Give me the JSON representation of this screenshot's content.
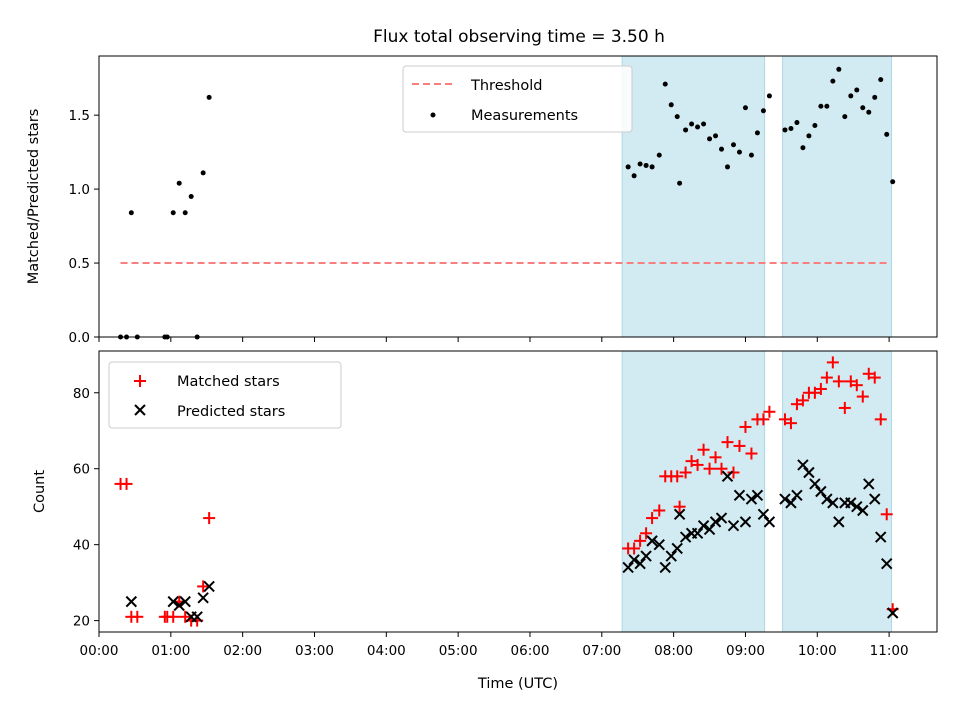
{
  "title": "Flux total observing time = 3.50 h",
  "colors": {
    "threshold": "#f77f7f",
    "measurement": "#000000",
    "matched": "#ff0000",
    "predicted": "#000000",
    "span": "#add8e6"
  },
  "chart_data": [
    {
      "type": "scatter",
      "ylabel": "Matched/Predicted stars",
      "xlabel": "",
      "xlim": [
        "00:00",
        "11:40"
      ],
      "ylim": [
        0,
        1.9
      ],
      "y_ticks": [
        "0.0",
        "0.5",
        "1.0",
        "1.5"
      ],
      "grid": false,
      "legend_position": "top-center",
      "shaded_spans": [
        [
          "07:17",
          "09:16"
        ],
        [
          "09:31",
          "11:02"
        ]
      ],
      "threshold": {
        "name": "Threshold",
        "value": 0.5,
        "x_range": [
          "00:18",
          "11:00"
        ]
      },
      "series": [
        {
          "name": "Measurements",
          "points": [
            [
              "00:18",
              0.0
            ],
            [
              "00:23",
              0.0
            ],
            [
              "00:27",
              0.84
            ],
            [
              "00:32",
              0.0
            ],
            [
              "00:55",
              0.0
            ],
            [
              "00:57",
              0.0
            ],
            [
              "01:02",
              0.84
            ],
            [
              "01:07",
              1.04
            ],
            [
              "01:12",
              0.84
            ],
            [
              "01:17",
              0.95
            ],
            [
              "01:22",
              0.0
            ],
            [
              "01:27",
              1.11
            ],
            [
              "01:32",
              1.62
            ],
            [
              "07:22",
              1.15
            ],
            [
              "07:27",
              1.09
            ],
            [
              "07:32",
              1.17
            ],
            [
              "07:37",
              1.16
            ],
            [
              "07:42",
              1.15
            ],
            [
              "07:48",
              1.23
            ],
            [
              "07:53",
              1.71
            ],
            [
              "07:58",
              1.57
            ],
            [
              "08:03",
              1.49
            ],
            [
              "08:05",
              1.04
            ],
            [
              "08:10",
              1.4
            ],
            [
              "08:15",
              1.44
            ],
            [
              "08:20",
              1.42
            ],
            [
              "08:25",
              1.44
            ],
            [
              "08:30",
              1.34
            ],
            [
              "08:35",
              1.36
            ],
            [
              "08:40",
              1.27
            ],
            [
              "08:45",
              1.15
            ],
            [
              "08:50",
              1.3
            ],
            [
              "08:55",
              1.25
            ],
            [
              "09:00",
              1.55
            ],
            [
              "09:05",
              1.23
            ],
            [
              "09:10",
              1.38
            ],
            [
              "09:15",
              1.53
            ],
            [
              "09:20",
              1.63
            ],
            [
              "09:33",
              1.4
            ],
            [
              "09:38",
              1.41
            ],
            [
              "09:43",
              1.45
            ],
            [
              "09:48",
              1.28
            ],
            [
              "09:53",
              1.36
            ],
            [
              "09:58",
              1.43
            ],
            [
              "10:03",
              1.56
            ],
            [
              "10:08",
              1.56
            ],
            [
              "10:13",
              1.73
            ],
            [
              "10:18",
              1.81
            ],
            [
              "10:23",
              1.49
            ],
            [
              "10:28",
              1.63
            ],
            [
              "10:33",
              1.67
            ],
            [
              "10:38",
              1.55
            ],
            [
              "10:43",
              1.52
            ],
            [
              "10:48",
              1.62
            ],
            [
              "10:53",
              1.74
            ],
            [
              "10:58",
              1.37
            ],
            [
              "11:03",
              1.05
            ]
          ]
        }
      ]
    },
    {
      "type": "scatter",
      "ylabel": "Count",
      "xlabel": "Time (UTC)",
      "xlim": [
        "00:00",
        "11:40"
      ],
      "ylim": [
        17,
        91
      ],
      "y_ticks": [
        "20",
        "40",
        "60",
        "80"
      ],
      "x_ticks": [
        "00:00",
        "01:00",
        "02:00",
        "03:00",
        "04:00",
        "05:00",
        "06:00",
        "07:00",
        "08:00",
        "09:00",
        "10:00",
        "11:00"
      ],
      "grid": false,
      "legend_position": "top-left",
      "shaded_spans": [
        [
          "07:17",
          "09:16"
        ],
        [
          "09:31",
          "11:02"
        ]
      ],
      "series": [
        {
          "name": "Matched stars",
          "marker": "+",
          "points": [
            [
              "00:18",
              56
            ],
            [
              "00:23",
              56
            ],
            [
              "00:27",
              21
            ],
            [
              "00:32",
              21
            ],
            [
              "00:55",
              21
            ],
            [
              "00:57",
              21
            ],
            [
              "01:02",
              21
            ],
            [
              "01:07",
              25
            ],
            [
              "01:12",
              21
            ],
            [
              "01:17",
              20
            ],
            [
              "01:22",
              20
            ],
            [
              "01:27",
              29
            ],
            [
              "01:32",
              47
            ],
            [
              "07:22",
              39
            ],
            [
              "07:27",
              39
            ],
            [
              "07:32",
              41
            ],
            [
              "07:37",
              43
            ],
            [
              "07:42",
              47
            ],
            [
              "07:48",
              49
            ],
            [
              "07:53",
              58
            ],
            [
              "07:58",
              58
            ],
            [
              "08:03",
              58
            ],
            [
              "08:05",
              50
            ],
            [
              "08:10",
              59
            ],
            [
              "08:15",
              62
            ],
            [
              "08:20",
              61
            ],
            [
              "08:25",
              65
            ],
            [
              "08:30",
              60
            ],
            [
              "08:35",
              63
            ],
            [
              "08:40",
              60
            ],
            [
              "08:45",
              67
            ],
            [
              "08:50",
              59
            ],
            [
              "08:55",
              66
            ],
            [
              "09:00",
              71
            ],
            [
              "09:05",
              64
            ],
            [
              "09:10",
              73
            ],
            [
              "09:15",
              73
            ],
            [
              "09:20",
              75
            ],
            [
              "09:33",
              73
            ],
            [
              "09:38",
              72
            ],
            [
              "09:43",
              77
            ],
            [
              "09:48",
              78
            ],
            [
              "09:53",
              80
            ],
            [
              "09:58",
              80
            ],
            [
              "10:03",
              81
            ],
            [
              "10:08",
              84
            ],
            [
              "10:13",
              88
            ],
            [
              "10:18",
              83
            ],
            [
              "10:23",
              76
            ],
            [
              "10:28",
              83
            ],
            [
              "10:33",
              82
            ],
            [
              "10:38",
              79
            ],
            [
              "10:43",
              85
            ],
            [
              "10:48",
              84
            ],
            [
              "10:53",
              73
            ],
            [
              "10:58",
              48
            ],
            [
              "11:03",
              23
            ]
          ]
        },
        {
          "name": "Predicted stars",
          "marker": "x",
          "points": [
            [
              "00:27",
              25
            ],
            [
              "01:02",
              25
            ],
            [
              "01:07",
              24
            ],
            [
              "01:12",
              25
            ],
            [
              "01:17",
              21
            ],
            [
              "01:22",
              21
            ],
            [
              "01:27",
              26
            ],
            [
              "01:32",
              29
            ],
            [
              "07:22",
              34
            ],
            [
              "07:27",
              36
            ],
            [
              "07:32",
              35
            ],
            [
              "07:37",
              37
            ],
            [
              "07:42",
              41
            ],
            [
              "07:48",
              40
            ],
            [
              "07:53",
              34
            ],
            [
              "07:58",
              37
            ],
            [
              "08:03",
              39
            ],
            [
              "08:05",
              48
            ],
            [
              "08:10",
              42
            ],
            [
              "08:15",
              43
            ],
            [
              "08:20",
              43
            ],
            [
              "08:25",
              45
            ],
            [
              "08:30",
              44
            ],
            [
              "08:35",
              46
            ],
            [
              "08:40",
              47
            ],
            [
              "08:45",
              58
            ],
            [
              "08:50",
              45
            ],
            [
              "08:55",
              53
            ],
            [
              "09:00",
              46
            ],
            [
              "09:05",
              52
            ],
            [
              "09:10",
              53
            ],
            [
              "09:15",
              48
            ],
            [
              "09:20",
              46
            ],
            [
              "09:33",
              52
            ],
            [
              "09:38",
              51
            ],
            [
              "09:43",
              53
            ],
            [
              "09:48",
              61
            ],
            [
              "09:53",
              59
            ],
            [
              "09:58",
              56
            ],
            [
              "10:03",
              54
            ],
            [
              "10:08",
              52
            ],
            [
              "10:13",
              51
            ],
            [
              "10:18",
              46
            ],
            [
              "10:23",
              51
            ],
            [
              "10:28",
              51
            ],
            [
              "10:33",
              50
            ],
            [
              "10:38",
              49
            ],
            [
              "10:43",
              56
            ],
            [
              "10:48",
              52
            ],
            [
              "10:53",
              42
            ],
            [
              "10:58",
              35
            ],
            [
              "11:03",
              22
            ]
          ]
        }
      ]
    }
  ]
}
